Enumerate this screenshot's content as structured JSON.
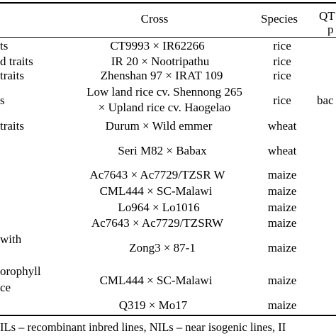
{
  "table": {
    "headers": {
      "cross": "Cross",
      "species": "Species",
      "qtl_top": "QT",
      "qtl_bottom": "p"
    },
    "rows": [
      {
        "left": "ts",
        "cross": "CT9993 × IR62266",
        "species": "rice",
        "extra": ""
      },
      {
        "left": "d traits",
        "cross": "IR 20 × Nootripathu",
        "species": "rice",
        "extra": ""
      },
      {
        "left": "traits",
        "cross": "Zhenshan 97 × IRAT 109",
        "species": "rice",
        "extra": ""
      },
      {
        "left": "s",
        "cross": "Low land rice cv. Shennong 265",
        "species": "rice",
        "extra": "bac"
      },
      {
        "left": "",
        "cross": "× Upland rice cv. Haogelao",
        "species": "",
        "extra": ""
      },
      {
        "left": "traits",
        "cross": "Durum × Wild emmer",
        "species": "wheat",
        "extra": ""
      },
      {
        "left": "",
        "cross": "Seri M82 × Babax",
        "species": "wheat",
        "extra": ""
      },
      {
        "left": "",
        "cross": "Ac7643 × Ac7729/TZSR W",
        "species": "maize",
        "extra": ""
      },
      {
        "left": "",
        "cross": "CML444 × SC-Malawi",
        "species": "maize",
        "extra": ""
      },
      {
        "left": "",
        "cross": "Lo964 × Lo1016",
        "species": "maize",
        "extra": ""
      },
      {
        "left": "",
        "cross": "Ac7643 × Ac7729/TZSRW",
        "species": "maize",
        "extra": ""
      },
      {
        "left": "with",
        "cross": "",
        "species": "",
        "extra": ""
      },
      {
        "left": "",
        "cross": "Zong3 × 87-1",
        "species": "maize",
        "extra": ""
      },
      {
        "left": "orophyll",
        "cross": "",
        "species": "",
        "extra": ""
      },
      {
        "left": "",
        "cross": "CML444 × SC-Malawi",
        "species": "maize",
        "extra": ""
      },
      {
        "left": "ce",
        "cross": "",
        "species": "",
        "extra": ""
      },
      {
        "left": "",
        "cross": "Q319 × Mo17",
        "species": "maize",
        "extra": ""
      }
    ],
    "footnote": "ILs – recombinant inbred lines, NILs – near isogenic lines, II"
  }
}
